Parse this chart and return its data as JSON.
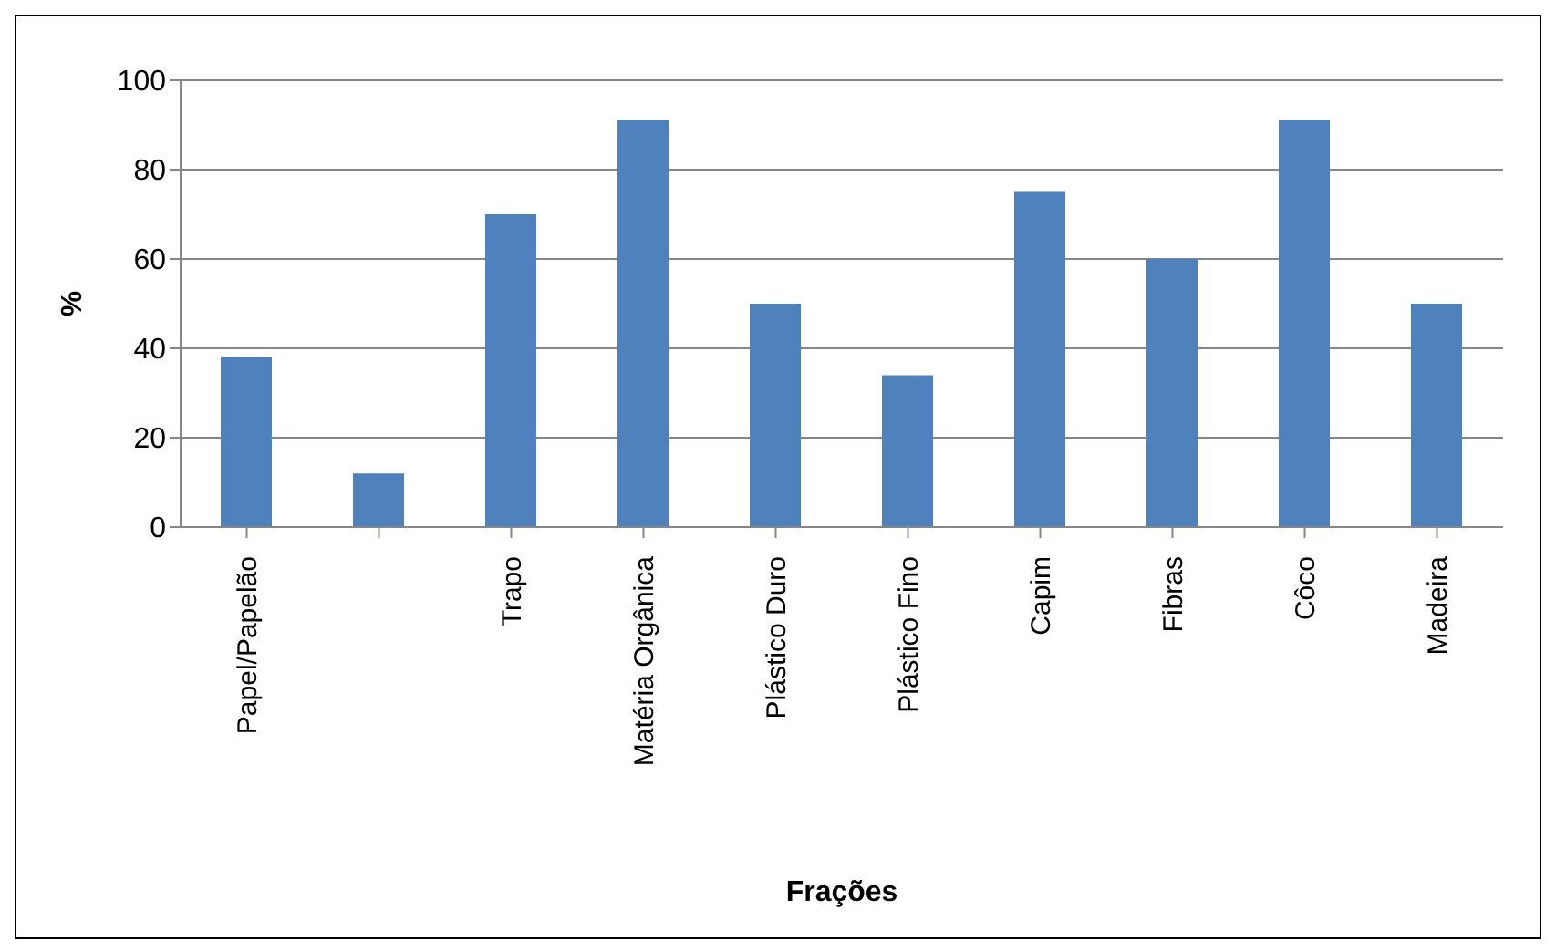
{
  "chart_data": {
    "type": "bar",
    "xlabel": "Frações",
    "ylabel": "%",
    "categories": [
      "Papel/Papelão",
      null,
      "Trapo",
      "Matéria Orgânica",
      "Plástico Duro",
      "Plástico Fino",
      "Capim",
      "Fibras",
      "Côco",
      "Madeira"
    ],
    "values": [
      38,
      12,
      70,
      91,
      50,
      34,
      75,
      60,
      91,
      50
    ],
    "color": "#4f81bd",
    "ylim": [
      0,
      100
    ],
    "yticks": [
      0,
      20,
      40,
      60,
      80,
      100
    ],
    "grid": "y"
  }
}
